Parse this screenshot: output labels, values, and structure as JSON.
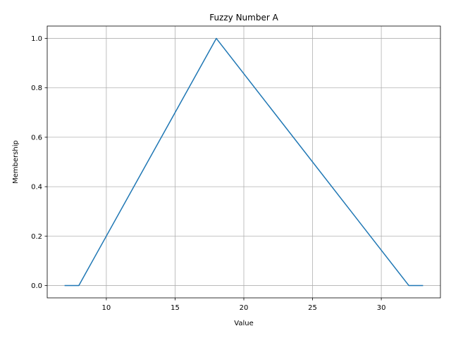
{
  "chart_data": {
    "type": "line",
    "title": "Fuzzy Number A",
    "xlabel": "Value",
    "ylabel": "Membership",
    "xlim": [
      5.7,
      34.3
    ],
    "ylim": [
      -0.05,
      1.05
    ],
    "xticks": [
      10,
      15,
      20,
      25,
      30
    ],
    "yticks": [
      0.0,
      0.2,
      0.4,
      0.6,
      0.8,
      1.0
    ],
    "xtick_labels": [
      "10",
      "15",
      "20",
      "25",
      "30"
    ],
    "ytick_labels": [
      "0.0",
      "0.2",
      "0.4",
      "0.6",
      "0.8",
      "1.0"
    ],
    "grid": true,
    "series": [
      {
        "color": "#1f77b4",
        "x": [
          7,
          8,
          18,
          32,
          33
        ],
        "y": [
          0.0,
          0.0,
          1.0,
          0.0,
          0.0
        ]
      }
    ]
  }
}
